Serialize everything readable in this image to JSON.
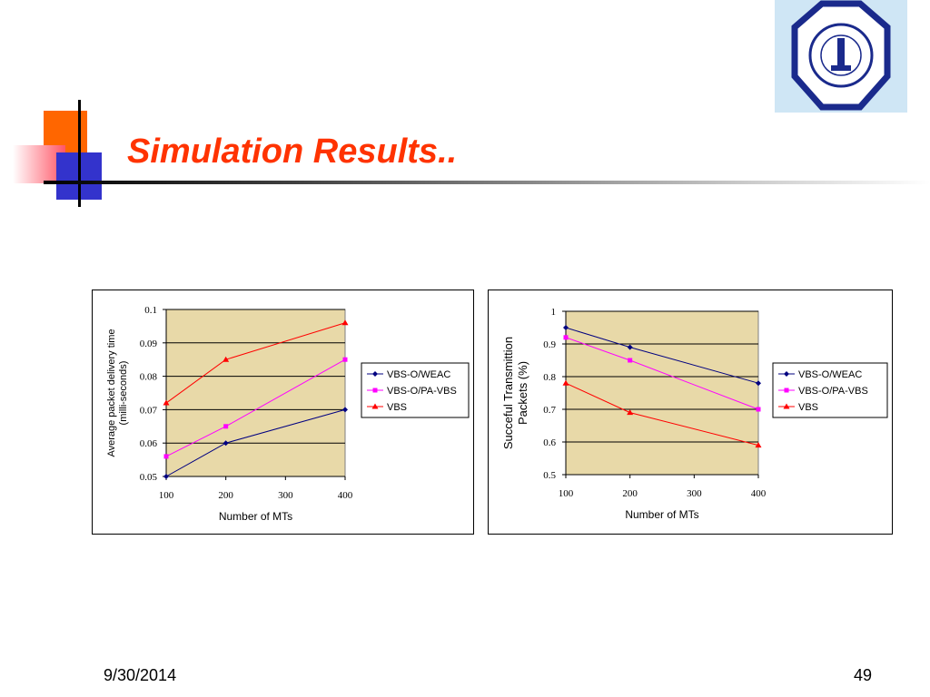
{
  "slide": {
    "title": "Simulation Results..",
    "date": "9/30/2014",
    "page_number": "49",
    "colors": {
      "title": "#ff3300",
      "orange": "#ff6600",
      "blue": "#3333cc",
      "plot_bg": "#e8d9a8"
    },
    "logo_icon": "university-seal-icon"
  },
  "chart_data": [
    {
      "type": "line",
      "title": "",
      "xlabel": "Number of MTs",
      "ylabel_lines": [
        "Average packet delivery time",
        "(milli-seconds)"
      ],
      "categories": [
        "100",
        "200",
        "300",
        "400"
      ],
      "x": [
        100,
        200,
        400
      ],
      "ylim": [
        0.05,
        0.1
      ],
      "yticks": [
        "0.1",
        "0.09",
        "0.08",
        "0.07",
        "0.06",
        "0.05"
      ],
      "ytick_values": [
        0.1,
        0.09,
        0.08,
        0.07,
        0.06,
        0.05
      ],
      "grid": true,
      "legend_position": "right",
      "series": [
        {
          "name": "VBS-O/WEAC",
          "color": "#000080",
          "marker": "diamond",
          "values": [
            0.05,
            0.06,
            0.07
          ]
        },
        {
          "name": "VBS-O/PA-VBS",
          "color": "#ff00ff",
          "marker": "square",
          "values": [
            0.056,
            0.065,
            0.085
          ]
        },
        {
          "name": "VBS",
          "color": "#ff0000",
          "marker": "triangle",
          "values": [
            0.072,
            0.085,
            0.096
          ]
        }
      ]
    },
    {
      "type": "line",
      "title": "",
      "xlabel": "Number of MTs",
      "ylabel_lines": [
        "Succeful Transmittion",
        "Packets (%)"
      ],
      "categories": [
        "100",
        "200",
        "300",
        "400"
      ],
      "x": [
        100,
        200,
        400
      ],
      "ylim": [
        0.5,
        1
      ],
      "yticks": [
        "1",
        "0.9",
        "0.8",
        "0.7",
        "0.6",
        "0.5"
      ],
      "ytick_values": [
        1,
        0.9,
        0.8,
        0.7,
        0.6,
        0.5
      ],
      "grid": true,
      "legend_position": "right",
      "series": [
        {
          "name": "VBS-O/WEAC",
          "color": "#000080",
          "marker": "diamond",
          "values": [
            0.95,
            0.89,
            0.78
          ]
        },
        {
          "name": "VBS-O/PA-VBS",
          "color": "#ff00ff",
          "marker": "square",
          "values": [
            0.92,
            0.85,
            0.7
          ]
        },
        {
          "name": "VBS",
          "color": "#ff0000",
          "marker": "triangle",
          "values": [
            0.78,
            0.69,
            0.59
          ]
        }
      ]
    }
  ]
}
